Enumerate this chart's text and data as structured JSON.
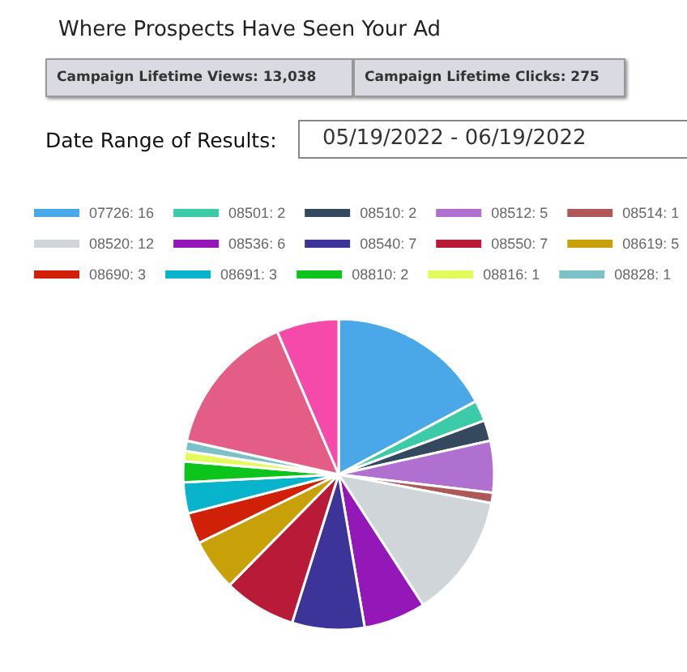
{
  "chart_data": {
    "type": "pie",
    "title": "Where Prospects Have Seen Your Ad",
    "annotations": [
      "Campaign Lifetime Views: 13,038",
      "Campaign Lifetime Clicks: 275",
      "Date Range of Results:",
      "05/19/2022 - 06/19/2022"
    ],
    "categories": [
      "07726: 16",
      "08501: 2",
      "08510: 2",
      "08512: 5",
      "08514: 1",
      "08520: 12",
      "08536: 6",
      "08540: 7",
      "08550: 7",
      "08619: 5",
      "08690: 3",
      "08691: 3",
      "08810: 2",
      "08816: 1",
      "08828: 1",
      null,
      null
    ],
    "values": [
      16,
      2,
      2,
      5,
      1,
      12,
      6,
      7,
      7,
      5,
      3,
      3,
      2,
      1,
      1,
      14,
      6
    ],
    "colors": [
      "#4aa8e8",
      "#3ccba8",
      "#34495e",
      "#b070d0",
      "#b05858",
      "#d0d5da",
      "#9418b8",
      "#3c3498",
      "#b81a38",
      "#c8a008",
      "#d02008",
      "#08b4cc",
      "#0cc41c",
      "#e4fa5c",
      "#7cc0c8",
      "#e35d87",
      "#f54aa9"
    ],
    "legend": "top"
  }
}
